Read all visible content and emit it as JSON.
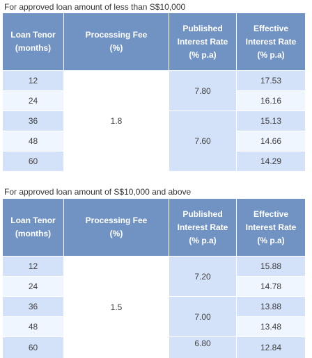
{
  "tables": [
    {
      "title": "For approved loan amount of less than S$10,000",
      "headers": {
        "tenor": [
          "Loan Tenor",
          "(months)"
        ],
        "fee": [
          "Processing Fee",
          "(%)"
        ],
        "published": [
          "Published",
          "Interest Rate",
          "(% p.a)"
        ],
        "effective": [
          "Effective",
          "Interest Rate",
          "(% p.a)"
        ]
      },
      "tenors": [
        "12",
        "24",
        "36",
        "48",
        "60"
      ],
      "processing_fee": "1.8",
      "published_rates": [
        "7.80",
        "7.60"
      ],
      "effective_rates": [
        "17.53",
        "16.16",
        "15.13",
        "14.66",
        "14.29"
      ]
    },
    {
      "title": "For approved loan amount of S$10,000 and above",
      "headers": {
        "tenor": [
          "Loan Tenor",
          "(months)"
        ],
        "fee": [
          "Processing Fee",
          "(%)"
        ],
        "published": [
          "Published",
          "Interest Rate",
          "(% p.a)"
        ],
        "effective": [
          "Effective",
          "Interest Rate",
          "(% p.a)"
        ]
      },
      "tenors": [
        "12",
        "24",
        "36",
        "48",
        "60"
      ],
      "processing_fee": "1.5",
      "published_rates": [
        "7.20",
        "7.00",
        "6.80"
      ],
      "effective_rates": [
        "15.88",
        "14.78",
        "13.88",
        "13.48",
        "12.84"
      ]
    }
  ]
}
